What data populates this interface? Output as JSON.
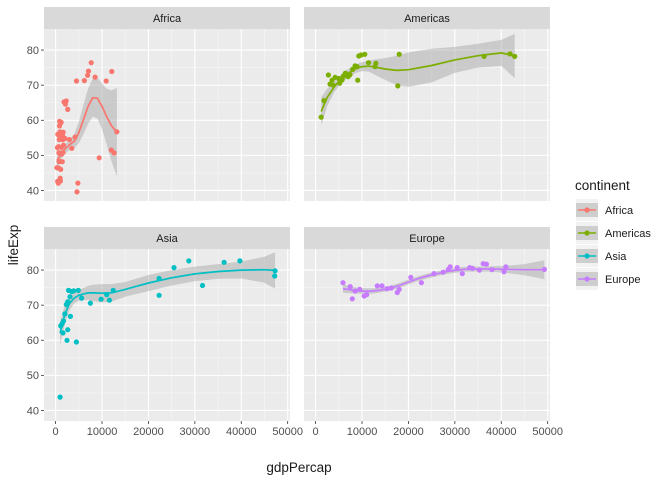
{
  "chart_data": {
    "type": "scatter",
    "xlabel": "gdpPercap",
    "ylabel": "lifeExp",
    "xlim": [
      -2500,
      50500
    ],
    "ylim": [
      37,
      86
    ],
    "x_ticks": [
      0,
      10000,
      20000,
      30000,
      40000,
      50000
    ],
    "x_tick_labels": [
      "0",
      "10000",
      "20000",
      "30000",
      "40000",
      "50000"
    ],
    "y_ticks": [
      40,
      50,
      60,
      70,
      80
    ],
    "y_tick_labels": [
      "40",
      "50",
      "60",
      "70",
      "80"
    ],
    "grid": true,
    "facets": "2x2, shared axes",
    "smoother": "loess line with grey confidence band",
    "legend": {
      "title": "continent",
      "position": "right",
      "entries": [
        {
          "name": "Africa",
          "color": "#F8766D"
        },
        {
          "name": "Americas",
          "color": "#7CAE00"
        },
        {
          "name": "Asia",
          "color": "#00BFC4"
        },
        {
          "name": "Europe",
          "color": "#C77CFF"
        }
      ]
    },
    "panels": [
      {
        "name": "Africa",
        "color": "#F8766D",
        "points": [
          [
            277,
            46.5
          ],
          [
            415,
            52.2
          ],
          [
            430,
            42.6
          ],
          [
            470,
            56.0
          ],
          [
            580,
            42.1
          ],
          [
            620,
            46.4
          ],
          [
            640,
            52.5
          ],
          [
            700,
            50.7
          ],
          [
            760,
            48.2
          ],
          [
            800,
            54.5
          ],
          [
            830,
            58.4
          ],
          [
            860,
            59.7
          ],
          [
            880,
            48.3
          ],
          [
            900,
            55.3
          ],
          [
            940,
            56.7
          ],
          [
            990,
            43.5
          ],
          [
            1040,
            42.7
          ],
          [
            1100,
            46.0
          ],
          [
            1110,
            50.4
          ],
          [
            1200,
            59.4
          ],
          [
            1250,
            52.3
          ],
          [
            1340,
            50.4
          ],
          [
            1440,
            48.2
          ],
          [
            1480,
            55.9
          ],
          [
            1540,
            54.5
          ],
          [
            1590,
            50.8
          ],
          [
            1640,
            56.6
          ],
          [
            1710,
            52.9
          ],
          [
            1800,
            65.2
          ],
          [
            1890,
            54.8
          ],
          [
            2050,
            54.8
          ],
          [
            2100,
            64.6
          ],
          [
            2280,
            65.5
          ],
          [
            2600,
            63.1
          ],
          [
            3000,
            54.5
          ],
          [
            3500,
            52.0
          ],
          [
            4200,
            55.2
          ],
          [
            4500,
            71.2
          ],
          [
            4600,
            39.6
          ],
          [
            4800,
            42.1
          ],
          [
            6200,
            71.3
          ],
          [
            6900,
            72.8
          ],
          [
            7090,
            74.0
          ],
          [
            7670,
            76.4
          ],
          [
            8500,
            72.3
          ],
          [
            9400,
            49.3
          ],
          [
            10900,
            71.2
          ],
          [
            12000,
            51.5
          ],
          [
            12100,
            73.9
          ],
          [
            12600,
            50.7
          ],
          [
            13200,
            56.7
          ]
        ],
        "smooth": [
          [
            280,
            48.5
          ],
          [
            1000,
            50.0
          ],
          [
            2000,
            51.8
          ],
          [
            3000,
            53.0
          ],
          [
            4000,
            54.0
          ],
          [
            5000,
            56.5
          ],
          [
            6000,
            60.2
          ],
          [
            7000,
            64.0
          ],
          [
            8000,
            66.4
          ],
          [
            9000,
            66.3
          ],
          [
            10000,
            64.0
          ],
          [
            11000,
            61.0
          ],
          [
            12000,
            58.5
          ],
          [
            13200,
            56.6
          ]
        ],
        "band": [
          [
            280,
            45.5,
            51.5
          ],
          [
            1000,
            48.5,
            51.5
          ],
          [
            2000,
            50.5,
            53.1
          ],
          [
            3000,
            51.5,
            54.5
          ],
          [
            4000,
            52.0,
            56.0
          ],
          [
            5000,
            53.5,
            59.5
          ],
          [
            6000,
            56.0,
            64.5
          ],
          [
            7000,
            59.0,
            69.0
          ],
          [
            8000,
            61.0,
            71.8
          ],
          [
            9000,
            60.5,
            72.1
          ],
          [
            10000,
            57.5,
            70.5
          ],
          [
            11000,
            53.0,
            69.0
          ],
          [
            12000,
            48.5,
            68.5
          ],
          [
            13200,
            44.0,
            69.2
          ]
        ]
      },
      {
        "name": "Americas",
        "color": "#7CAE00",
        "points": [
          [
            1200,
            60.9
          ],
          [
            1800,
            65.6
          ],
          [
            2750,
            72.9
          ],
          [
            3100,
            70.3
          ],
          [
            3550,
            71.4
          ],
          [
            3800,
            70.0
          ],
          [
            4200,
            72.2
          ],
          [
            5000,
            71.9
          ],
          [
            5200,
            70.6
          ],
          [
            5700,
            71.5
          ],
          [
            6000,
            72.6
          ],
          [
            6400,
            73.4
          ],
          [
            7010,
            72.8
          ],
          [
            7000,
            72.4
          ],
          [
            7400,
            73.0
          ],
          [
            8000,
            74.5
          ],
          [
            8500,
            75.5
          ],
          [
            8950,
            75.3
          ],
          [
            9060,
            71.4
          ],
          [
            9300,
            78.3
          ],
          [
            9800,
            78.6
          ],
          [
            10600,
            78.8
          ],
          [
            11400,
            76.4
          ],
          [
            12800,
            75.3
          ],
          [
            13000,
            76.2
          ],
          [
            17700,
            69.8
          ],
          [
            18000,
            78.8
          ],
          [
            36300,
            78.2
          ],
          [
            41900,
            78.9
          ],
          [
            42900,
            78.2
          ]
        ],
        "smooth": [
          [
            1200,
            62.5
          ],
          [
            2500,
            66.5
          ],
          [
            4000,
            69.5
          ],
          [
            5500,
            71.8
          ],
          [
            7000,
            73.4
          ],
          [
            8500,
            74.6
          ],
          [
            10000,
            75.3
          ],
          [
            11500,
            75.4
          ],
          [
            13000,
            75.1
          ],
          [
            15000,
            74.6
          ],
          [
            17500,
            74.2
          ],
          [
            20000,
            74.4
          ],
          [
            25000,
            75.6
          ],
          [
            30000,
            77.2
          ],
          [
            35000,
            78.4
          ],
          [
            40000,
            79.2
          ],
          [
            42900,
            78.3
          ]
        ],
        "band": [
          [
            1200,
            58.5,
            66.5
          ],
          [
            2500,
            64.0,
            69.0
          ],
          [
            4000,
            68.0,
            71.0
          ],
          [
            5500,
            70.5,
            73.0
          ],
          [
            7000,
            72.2,
            74.6
          ],
          [
            8500,
            73.4,
            75.8
          ],
          [
            10000,
            74.0,
            76.6
          ],
          [
            11500,
            73.8,
            77.0
          ],
          [
            13000,
            72.8,
            77.4
          ],
          [
            15000,
            71.5,
            77.7
          ],
          [
            17500,
            70.0,
            78.4
          ],
          [
            20000,
            69.5,
            79.3
          ],
          [
            25000,
            70.8,
            80.4
          ],
          [
            30000,
            73.5,
            80.9
          ],
          [
            35000,
            75.0,
            81.8
          ],
          [
            40000,
            75.5,
            82.9
          ],
          [
            42900,
            72.0,
            84.6
          ]
        ]
      },
      {
        "name": "Asia",
        "color": "#00BFC4",
        "points": [
          [
            975,
            43.8
          ],
          [
            1090,
            64.1
          ],
          [
            1390,
            64.7
          ],
          [
            2450,
            60.0
          ],
          [
            3190,
            66.8
          ],
          [
            4470,
            59.5
          ],
          [
            1600,
            62.1
          ],
          [
            1700,
            65.5
          ],
          [
            2600,
            63.0
          ],
          [
            2000,
            67.5
          ],
          [
            2300,
            70.2
          ],
          [
            2600,
            71.0
          ],
          [
            3100,
            72.4
          ],
          [
            3500,
            73.9
          ],
          [
            3900,
            74.1
          ],
          [
            4900,
            74.2
          ],
          [
            2800,
            74.2
          ],
          [
            5600,
            72.0
          ],
          [
            7500,
            70.6
          ],
          [
            9800,
            71.7
          ],
          [
            11000,
            73.0
          ],
          [
            11600,
            71.4
          ],
          [
            12400,
            74.2
          ],
          [
            22300,
            72.8
          ],
          [
            25500,
            80.7
          ],
          [
            28700,
            82.6
          ],
          [
            31650,
            75.6
          ],
          [
            36300,
            82.2
          ],
          [
            39700,
            82.6
          ],
          [
            47300,
            79.8
          ],
          [
            47200,
            78.3
          ],
          [
            22300,
            77.6
          ]
        ],
        "smooth": [
          [
            975,
            62.0
          ],
          [
            2000,
            67.5
          ],
          [
            3000,
            70.5
          ],
          [
            4000,
            72.0
          ],
          [
            5000,
            72.8
          ],
          [
            6000,
            73.2
          ],
          [
            7000,
            73.5
          ],
          [
            8000,
            73.5
          ],
          [
            10000,
            73.4
          ],
          [
            12000,
            73.5
          ],
          [
            15000,
            74.5
          ],
          [
            20000,
            76.3
          ],
          [
            25000,
            77.8
          ],
          [
            30000,
            78.9
          ],
          [
            35000,
            79.6
          ],
          [
            40000,
            80.0
          ],
          [
            45000,
            80.1
          ],
          [
            47300,
            79.9
          ]
        ],
        "band": [
          [
            975,
            58.5,
            65.5
          ],
          [
            2000,
            65.0,
            70.0
          ],
          [
            3000,
            68.5,
            72.5
          ],
          [
            4000,
            70.5,
            73.5
          ],
          [
            5000,
            71.3,
            74.3
          ],
          [
            6000,
            71.5,
            74.9
          ],
          [
            7000,
            71.5,
            75.5
          ],
          [
            8000,
            71.2,
            75.8
          ],
          [
            10000,
            70.8,
            76.0
          ],
          [
            12000,
            71.0,
            76.0
          ],
          [
            15000,
            72.4,
            76.6
          ],
          [
            20000,
            74.0,
            78.6
          ],
          [
            25000,
            75.6,
            80.0
          ],
          [
            30000,
            76.8,
            81.0
          ],
          [
            35000,
            77.5,
            81.7
          ],
          [
            40000,
            77.6,
            82.4
          ],
          [
            45000,
            76.4,
            83.8
          ],
          [
            47300,
            74.7,
            85.1
          ]
        ]
      },
      {
        "name": "Europe",
        "color": "#C77CFF",
        "points": [
          [
            5900,
            76.4
          ],
          [
            7450,
            75.3
          ],
          [
            7900,
            71.8
          ],
          [
            8500,
            74.0
          ],
          [
            9500,
            74.5
          ],
          [
            10460,
            72.6
          ],
          [
            11000,
            73.0
          ],
          [
            13300,
            75.5
          ],
          [
            14300,
            75.5
          ],
          [
            15400,
            74.7
          ],
          [
            16300,
            74.9
          ],
          [
            17600,
            73.6
          ],
          [
            18000,
            74.5
          ],
          [
            20500,
            77.9
          ],
          [
            22800,
            76.4
          ],
          [
            25500,
            79.0
          ],
          [
            27500,
            79.4
          ],
          [
            28600,
            80.2
          ],
          [
            29000,
            80.9
          ],
          [
            30500,
            80.7
          ],
          [
            31600,
            79.0
          ],
          [
            33200,
            80.7
          ],
          [
            33800,
            80.5
          ],
          [
            35300,
            80.0
          ],
          [
            36100,
            81.8
          ],
          [
            36800,
            81.7
          ],
          [
            38000,
            80.1
          ],
          [
            40600,
            79.5
          ],
          [
            41000,
            80.9
          ],
          [
            49300,
            80.2
          ]
        ],
        "smooth": [
          [
            5900,
            74.7
          ],
          [
            8000,
            74.3
          ],
          [
            10000,
            74.0
          ],
          [
            12000,
            74.0
          ],
          [
            14000,
            74.3
          ],
          [
            16000,
            74.8
          ],
          [
            18000,
            75.6
          ],
          [
            20000,
            76.6
          ],
          [
            22000,
            77.5
          ],
          [
            24000,
            78.3
          ],
          [
            26000,
            78.9
          ],
          [
            28000,
            79.5
          ],
          [
            30000,
            79.9
          ],
          [
            32000,
            80.2
          ],
          [
            35000,
            80.3
          ],
          [
            38000,
            80.3
          ],
          [
            41000,
            80.2
          ],
          [
            45000,
            80.1
          ],
          [
            49300,
            80.1
          ]
        ],
        "band": [
          [
            5900,
            73.5,
            76.0
          ],
          [
            8000,
            73.4,
            75.2
          ],
          [
            10000,
            73.2,
            74.8
          ],
          [
            12000,
            73.2,
            74.8
          ],
          [
            14000,
            73.6,
            75.0
          ],
          [
            16000,
            74.1,
            75.5
          ],
          [
            18000,
            74.9,
            76.3
          ],
          [
            20000,
            75.9,
            77.3
          ],
          [
            22000,
            76.8,
            78.2
          ],
          [
            24000,
            77.6,
            79.0
          ],
          [
            26000,
            78.2,
            79.6
          ],
          [
            28000,
            78.8,
            80.2
          ],
          [
            30000,
            79.2,
            80.6
          ],
          [
            32000,
            79.5,
            80.9
          ],
          [
            35000,
            79.6,
            81.0
          ],
          [
            38000,
            79.5,
            81.1
          ],
          [
            41000,
            79.2,
            81.2
          ],
          [
            45000,
            78.5,
            81.7
          ],
          [
            49300,
            77.4,
            82.8
          ]
        ]
      }
    ]
  }
}
